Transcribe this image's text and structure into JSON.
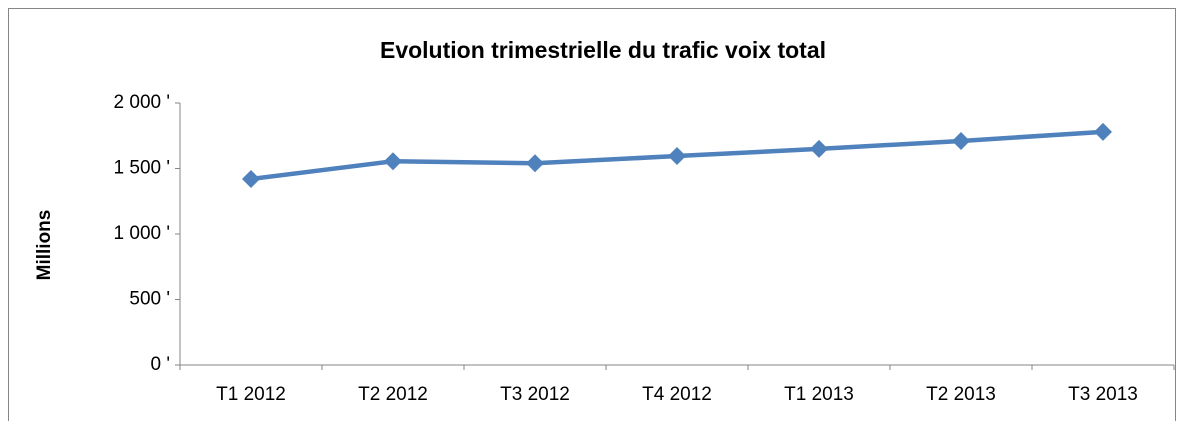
{
  "chart_data": {
    "type": "line",
    "title": "Evolution trimestrielle du trafic voix total",
    "y_label": "Millions",
    "categories": [
      "T1 2012",
      "T2 2012",
      "T3 2012",
      "T4 2012",
      "T1 2013",
      "T2 2013",
      "T3 2013"
    ],
    "series": [
      {
        "name": "Trafic voix total",
        "color": "#4f81bd",
        "values": [
          1420,
          1555,
          1540,
          1595,
          1650,
          1710,
          1780
        ]
      }
    ],
    "ylim": [
      0,
      2000
    ],
    "yticks": [
      {
        "value": 0,
        "label": "0 '"
      },
      {
        "value": 500,
        "label": "500 '"
      },
      {
        "value": 1000,
        "label": "1 000 '"
      },
      {
        "value": 1500,
        "label": "1 500 '"
      },
      {
        "value": 2000,
        "label": "2 000 '"
      }
    ],
    "grid": false,
    "legend": false
  }
}
